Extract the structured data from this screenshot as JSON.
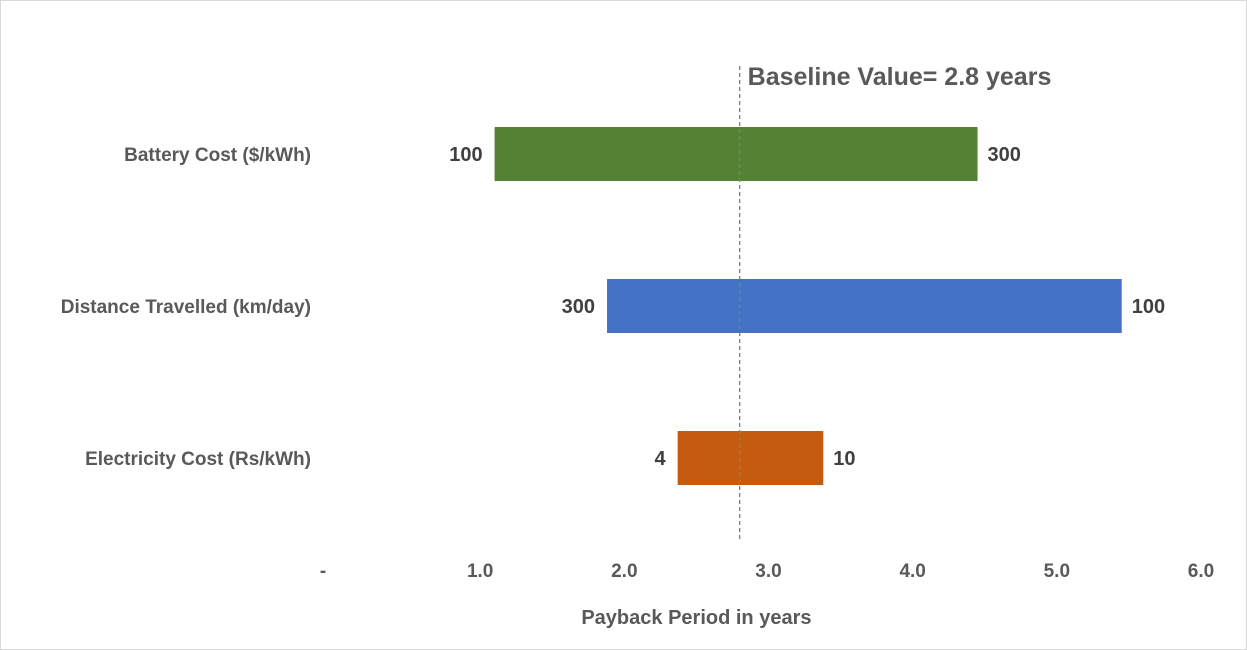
{
  "chart_data": {
    "type": "bar",
    "orientation": "horizontal",
    "subtype": "tornado",
    "categories": [
      "Battery Cost ($/kWh)",
      "Distance Travelled (km/day)",
      "Electricity Cost (Rs/kWh)"
    ],
    "bars": [
      {
        "category": "Battery Cost ($/kWh)",
        "start": 1.1,
        "end": 4.45,
        "left_label": "100",
        "right_label": "300",
        "color": "#548235"
      },
      {
        "category": "Distance Travelled (km/day)",
        "start": 1.88,
        "end": 5.45,
        "left_label": "300",
        "right_label": "100",
        "color": "#4472C4"
      },
      {
        "category": "Electricity Cost (Rs/kWh)",
        "start": 2.37,
        "end": 3.38,
        "left_label": "4",
        "right_label": "10",
        "color": "#C55A11"
      }
    ],
    "baseline": {
      "value": 2.8,
      "label": "Baseline Value= 2.8 years"
    },
    "xlabel": "Payback Period in years",
    "ylabel": "",
    "xlim": [
      0,
      6
    ],
    "x_ticks": [
      0,
      1,
      2,
      3,
      4,
      5,
      6
    ],
    "x_tick_labels": [
      "-",
      "1.0",
      "2.0",
      "3.0",
      "4.0",
      "5.0",
      "6.0"
    ],
    "grid": false,
    "legend": "none"
  },
  "colors": {
    "label_text": "#595959",
    "data_label_text": "#404040",
    "baseline_line": "#7f7f7f"
  }
}
